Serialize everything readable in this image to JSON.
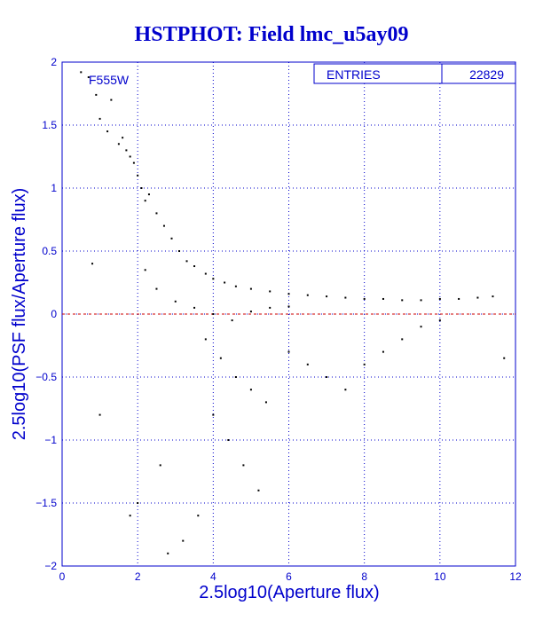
{
  "chart_data": {
    "type": "scatter",
    "title": "HSTPHOT: Field lmc_u5ay09",
    "xlabel": "2.5log10(Aperture flux)",
    "ylabel": "2.5log10(PSF flux/Aperture flux)",
    "xlim": [
      0,
      12
    ],
    "ylim": [
      -2,
      2
    ],
    "x_ticks": [
      "0",
      "2",
      "4",
      "6",
      "8",
      "10",
      "12"
    ],
    "y_ticks": [
      "-2",
      "-1.5",
      "-1",
      "-0.5",
      "0",
      "0.5",
      "1",
      "1.5",
      "2"
    ],
    "filter_label": "F555W",
    "grid": true,
    "reference_line": {
      "y": 0,
      "color": "#cc0000",
      "style": "dashed"
    },
    "stats_box": {
      "label": "ENTRIES",
      "value": "22829"
    },
    "series": [
      {
        "points": [
          [
            0.5,
            1.92
          ],
          [
            0.7,
            1.88
          ],
          [
            0.9,
            1.74
          ],
          [
            1.0,
            1.55
          ],
          [
            1.2,
            1.45
          ],
          [
            1.3,
            1.7
          ],
          [
            1.5,
            1.35
          ],
          [
            1.6,
            1.4
          ],
          [
            1.7,
            1.3
          ],
          [
            1.8,
            1.25
          ],
          [
            1.9,
            1.2
          ],
          [
            2.0,
            1.1
          ],
          [
            2.1,
            1.0
          ],
          [
            2.2,
            0.9
          ],
          [
            2.3,
            0.95
          ],
          [
            2.5,
            0.8
          ],
          [
            2.7,
            0.7
          ],
          [
            2.9,
            0.6
          ],
          [
            3.1,
            0.5
          ],
          [
            3.3,
            0.42
          ],
          [
            3.5,
            0.38
          ],
          [
            3.8,
            0.32
          ],
          [
            4.0,
            0.28
          ],
          [
            4.3,
            0.25
          ],
          [
            4.6,
            0.22
          ],
          [
            5.0,
            0.2
          ],
          [
            5.5,
            0.18
          ],
          [
            6.0,
            0.16
          ],
          [
            6.5,
            0.15
          ],
          [
            7.0,
            0.14
          ],
          [
            7.5,
            0.13
          ],
          [
            8.0,
            0.12
          ],
          [
            8.5,
            0.12
          ],
          [
            9.0,
            0.11
          ],
          [
            9.5,
            0.11
          ],
          [
            10.0,
            0.12
          ],
          [
            10.5,
            0.12
          ],
          [
            11.0,
            0.13
          ],
          [
            11.4,
            0.14
          ],
          [
            3.5,
            0.05
          ],
          [
            4.0,
            0.0
          ],
          [
            4.5,
            -0.05
          ],
          [
            5.0,
            0.02
          ],
          [
            5.5,
            0.05
          ],
          [
            6.0,
            0.06
          ],
          [
            3.8,
            -0.2
          ],
          [
            4.2,
            -0.35
          ],
          [
            4.6,
            -0.5
          ],
          [
            5.0,
            -0.6
          ],
          [
            5.4,
            -0.7
          ],
          [
            4.0,
            -0.8
          ],
          [
            4.4,
            -1.0
          ],
          [
            4.8,
            -1.2
          ],
          [
            5.2,
            -1.4
          ],
          [
            3.6,
            -1.6
          ],
          [
            3.2,
            -1.8
          ],
          [
            2.8,
            -1.9
          ],
          [
            6.0,
            -0.3
          ],
          [
            6.5,
            -0.4
          ],
          [
            7.0,
            -0.5
          ],
          [
            7.5,
            -0.6
          ],
          [
            8.0,
            -0.4
          ],
          [
            8.5,
            -0.3
          ],
          [
            9.0,
            -0.2
          ],
          [
            9.5,
            -0.1
          ],
          [
            10.0,
            -0.05
          ],
          [
            2.6,
            -1.2
          ],
          [
            2.0,
            -1.5
          ],
          [
            1.8,
            -1.6
          ],
          [
            3.0,
            0.1
          ],
          [
            2.5,
            0.2
          ],
          [
            2.2,
            0.35
          ],
          [
            1.0,
            -0.8
          ],
          [
            0.8,
            0.4
          ],
          [
            11.7,
            -0.35
          ]
        ]
      }
    ]
  }
}
